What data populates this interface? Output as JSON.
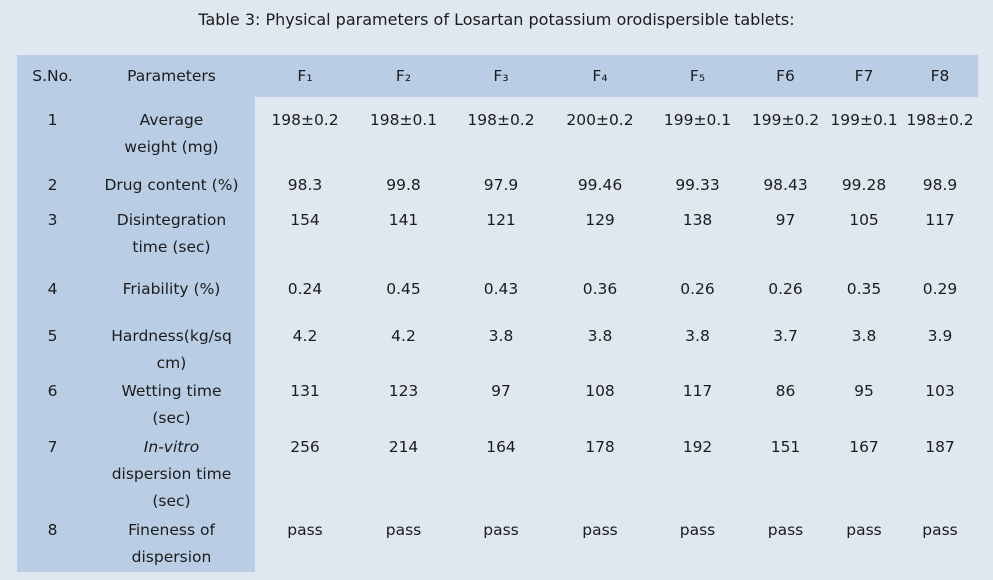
{
  "title": "Table 3: Physical parameters of Losartan potassium orodispersible tablets:",
  "table": {
    "header": [
      "S.No.",
      "Parameters",
      "F₁",
      "F₂",
      "F₃",
      "F₄",
      "F₅",
      "F6",
      "F7",
      "F8"
    ],
    "rows": [
      {
        "sno": "1",
        "parameter": [
          "Average",
          "weight (mg)"
        ],
        "values": [
          "198±0.2",
          "198±0.1",
          "198±0.2",
          "200±0.2",
          "199±0.1",
          "199±0.2",
          "199±0.1",
          "198±0.2"
        ]
      },
      {
        "sno": "2",
        "parameter": [
          "Drug content (%)"
        ],
        "values": [
          "98.3",
          "99.8",
          "97.9",
          "99.46",
          "99.33",
          "98.43",
          "99.28",
          "98.9"
        ]
      },
      {
        "sno": "3",
        "parameter": [
          "Disintegration",
          "time (sec)"
        ],
        "values": [
          "154",
          "141",
          "121",
          "129",
          "138",
          "97",
          "105",
          "117"
        ]
      },
      {
        "sno": "4",
        "parameter": [
          "Friability (%)"
        ],
        "values": [
          "0.24",
          "0.45",
          "0.43",
          "0.36",
          "0.26",
          "0.26",
          "0.35",
          "0.29"
        ]
      },
      {
        "sno": "5",
        "parameter": [
          "Hardness(kg/sq",
          "cm)"
        ],
        "values": [
          "4.2",
          "4.2",
          "3.8",
          "3.8",
          "3.8",
          "3.7",
          "3.8",
          "3.9"
        ]
      },
      {
        "sno": "6",
        "parameter": [
          "Wetting time",
          "(sec)"
        ],
        "values": [
          "131",
          "123",
          "97",
          "108",
          "117",
          "86",
          "95",
          "103"
        ]
      },
      {
        "sno": "7",
        "parameter": [
          "In-vitro",
          "dispersion time",
          "(sec)"
        ],
        "italic_line": 0,
        "values": [
          "256",
          "214",
          "164",
          "178",
          "192",
          "151",
          "167",
          "187"
        ]
      },
      {
        "sno": "8",
        "parameter": [
          "Fineness of",
          "dispersion"
        ],
        "values": [
          "pass",
          "pass",
          "pass",
          "pass",
          "pass",
          "pass",
          "pass",
          "pass"
        ]
      }
    ]
  }
}
